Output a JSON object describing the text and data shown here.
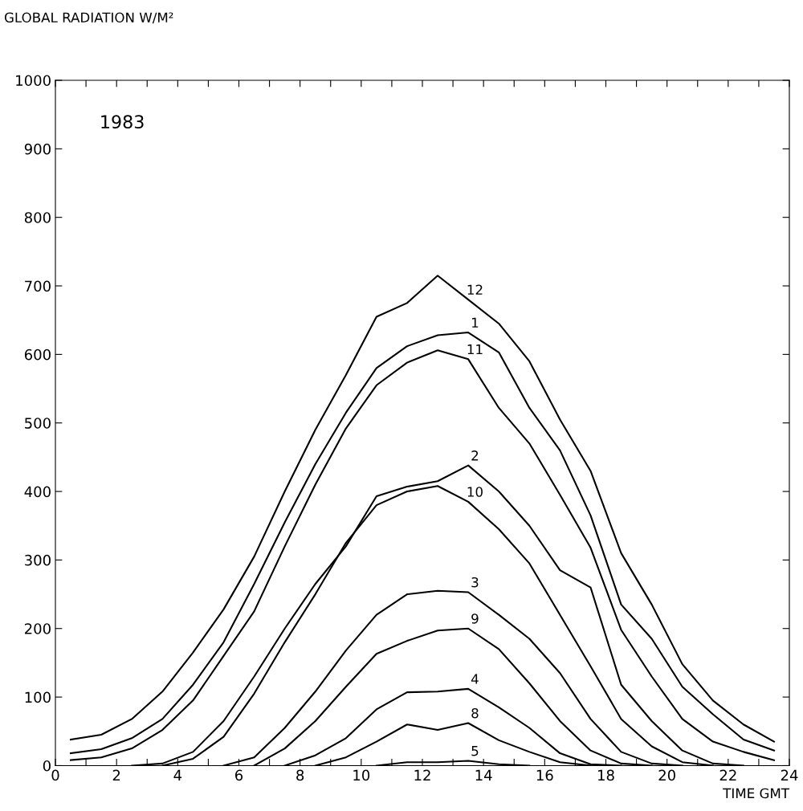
{
  "chart_data": {
    "type": "line",
    "ylabel": "GLOBAL RADIATION W/M²",
    "xlabel": "TIME GMT",
    "annotations": [
      "1983"
    ],
    "x": [
      0.5,
      1.5,
      2.5,
      3.5,
      4.5,
      5.5,
      6.5,
      7.5,
      8.5,
      9.5,
      10.5,
      11.5,
      12.5,
      13.5,
      14.5,
      15.5,
      16.5,
      17.5,
      18.5,
      19.5,
      20.5,
      21.5,
      22.5,
      23.5
    ],
    "series": [
      {
        "name": "12",
        "color": "#000000",
        "values": [
          38,
          45,
          68,
          108,
          165,
          228,
          305,
          400,
          490,
          570,
          655,
          675,
          715,
          680,
          645,
          590,
          505,
          430,
          310,
          235,
          148,
          95,
          60,
          35
        ]
      },
      {
        "name": "1",
        "color": "#000000",
        "values": [
          18,
          24,
          40,
          68,
          118,
          180,
          265,
          355,
          440,
          515,
          580,
          612,
          628,
          632,
          603,
          522,
          460,
          365,
          235,
          185,
          115,
          75,
          38,
          22
        ]
      },
      {
        "name": "11",
        "color": "#000000",
        "values": [
          8,
          12,
          25,
          52,
          95,
          160,
          225,
          320,
          410,
          492,
          555,
          588,
          606,
          593,
          522,
          470,
          395,
          318,
          198,
          130,
          68,
          35,
          20,
          8
        ]
      },
      {
        "name": "2",
        "color": "#000000",
        "x": [
          2.5,
          3.5,
          4.5,
          5.5,
          6.5,
          7.5,
          8.5,
          9.5,
          10.5,
          11.5,
          12.5,
          13.5,
          14.5,
          15.5,
          16.5,
          17.5,
          18.5,
          19.5,
          20.5,
          21.5,
          22.5
        ],
        "values": [
          0,
          3,
          20,
          65,
          130,
          200,
          265,
          320,
          393,
          407,
          415,
          438,
          400,
          350,
          285,
          260,
          118,
          65,
          22,
          3,
          0
        ]
      },
      {
        "name": "10",
        "color": "#000000",
        "x": [
          3.5,
          4.5,
          5.5,
          6.5,
          7.5,
          8.5,
          9.5,
          10.5,
          11.5,
          12.5,
          13.5,
          14.5,
          15.5,
          16.5,
          17.5,
          18.5,
          19.5,
          20.5,
          21.5
        ],
        "values": [
          0,
          10,
          42,
          105,
          180,
          250,
          325,
          380,
          400,
          408,
          385,
          345,
          295,
          220,
          145,
          68,
          28,
          5,
          0
        ]
      },
      {
        "name": "3",
        "color": "#000000",
        "x": [
          5.5,
          6.5,
          7.5,
          8.5,
          9.5,
          10.5,
          11.5,
          12.5,
          13.5,
          14.5,
          15.5,
          16.5,
          17.5,
          18.5,
          19.5,
          20.5
        ],
        "values": [
          0,
          12,
          55,
          108,
          168,
          220,
          250,
          255,
          253,
          220,
          185,
          135,
          68,
          20,
          3,
          0
        ]
      },
      {
        "name": "9",
        "color": "#000000",
        "x": [
          6.5,
          7.5,
          8.5,
          9.5,
          10.5,
          11.5,
          12.5,
          13.5,
          14.5,
          15.5,
          16.5,
          17.5,
          18.5,
          19.5
        ],
        "values": [
          0,
          25,
          65,
          115,
          163,
          182,
          197,
          200,
          170,
          120,
          65,
          22,
          3,
          0
        ]
      },
      {
        "name": "4",
        "color": "#000000",
        "x": [
          7.5,
          8.5,
          9.5,
          10.5,
          11.5,
          12.5,
          13.5,
          14.5,
          15.5,
          16.5,
          17.5,
          18.5
        ],
        "values": [
          0,
          15,
          40,
          82,
          107,
          108,
          112,
          85,
          55,
          18,
          2,
          0
        ]
      },
      {
        "name": "8",
        "color": "#000000",
        "x": [
          8.5,
          9.5,
          10.5,
          11.5,
          12.5,
          13.5,
          14.5,
          15.5,
          16.5,
          17.5
        ],
        "values": [
          0,
          12,
          35,
          60,
          52,
          62,
          37,
          20,
          5,
          0
        ]
      },
      {
        "name": "5",
        "color": "#000000",
        "x": [
          10.5,
          11.5,
          12.5,
          13.5,
          14.5,
          15.5
        ],
        "values": [
          0,
          5,
          5,
          7,
          2,
          0
        ]
      }
    ],
    "xlim": [
      0,
      24
    ],
    "xticks": [
      0,
      {
        "value": 1,
        "label": null
      },
      2,
      {
        "value": 3,
        "label": null
      },
      4,
      {
        "value": 5,
        "label": null
      },
      6,
      {
        "value": 7,
        "label": null
      },
      8,
      {
        "value": 9,
        "label": null
      },
      10,
      {
        "value": 11,
        "label": null
      },
      12,
      {
        "value": 13,
        "label": null
      },
      14,
      {
        "value": 15,
        "label": null
      },
      16,
      {
        "value": 17,
        "label": null
      },
      18,
      {
        "value": 19,
        "label": null
      },
      20,
      {
        "value": 21,
        "label": null
      },
      22,
      {
        "value": 23,
        "label": null
      },
      24
    ],
    "ylim": [
      0,
      1000
    ],
    "yticks": [
      0,
      100,
      200,
      300,
      400,
      500,
      600,
      700,
      800,
      900,
      1000
    ],
    "grid": false,
    "legend": false,
    "marker": "none",
    "line_style": "solid"
  }
}
